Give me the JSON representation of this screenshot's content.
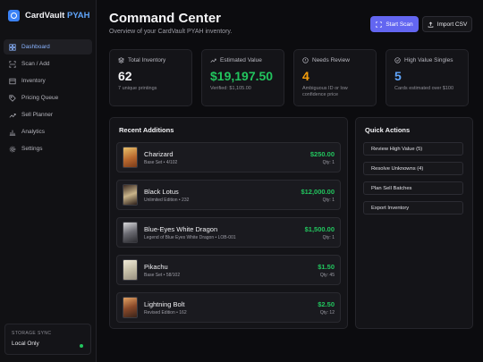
{
  "brand": {
    "name": "CardVault",
    "accent": "PYAH"
  },
  "nav": [
    {
      "label": "Dashboard",
      "icon": "dashboard-icon",
      "active": true
    },
    {
      "label": "Scan / Add",
      "icon": "scan-icon"
    },
    {
      "label": "Inventory",
      "icon": "inventory-icon"
    },
    {
      "label": "Pricing Queue",
      "icon": "pricing-icon"
    },
    {
      "label": "Sell Planner",
      "icon": "trend-icon"
    },
    {
      "label": "Analytics",
      "icon": "chart-icon"
    },
    {
      "label": "Settings",
      "icon": "gear-icon"
    }
  ],
  "sync": {
    "label": "STORAGE SYNC",
    "value": "Local Only",
    "status_color": "#22c55e"
  },
  "header": {
    "title": "Command Center",
    "subtitle": "Overview of your CardVault PYAH inventory.",
    "scan_label": "Start Scan",
    "import_label": "Import CSV"
  },
  "stats": [
    {
      "label": "Total Inventory",
      "value": "62",
      "note": "7 unique printings",
      "color": "#f5f5f7",
      "icon": "layers-icon"
    },
    {
      "label": "Estimated Value",
      "value": "$19,197.50",
      "note": "Verified: $1,105.00",
      "color": "#22c55e",
      "icon": "trend-icon"
    },
    {
      "label": "Needs Review",
      "value": "4",
      "note": "Ambiguous ID or low confidence price",
      "color": "#f59e0b",
      "icon": "alert-icon"
    },
    {
      "label": "High Value Singles",
      "value": "5",
      "note": "Cards estimated over $100",
      "color": "#60a5fa",
      "icon": "target-icon"
    }
  ],
  "recent": {
    "title": "Recent Additions",
    "items": [
      {
        "name": "Charizard",
        "set": "Base Set • 4/102",
        "price": "$250.00",
        "qty": "Qty: 1"
      },
      {
        "name": "Black Lotus",
        "set": "Unlimited Edition • 232",
        "price": "$12,000.00",
        "qty": "Qty: 1"
      },
      {
        "name": "Blue-Eyes White Dragon",
        "set": "Legend of Blue Eyes White Dragon • LOB-001",
        "price": "$1,500.00",
        "qty": "Qty: 1"
      },
      {
        "name": "Pikachu",
        "set": "Base Set • 58/102",
        "price": "$1.50",
        "qty": "Qty: 45"
      },
      {
        "name": "Lightning Bolt",
        "set": "Revised Edition • 162",
        "price": "$2.50",
        "qty": "Qty: 12"
      }
    ]
  },
  "quick": {
    "title": "Quick Actions",
    "actions": [
      "Review High Value (5)",
      "Resolve Unknowns (4)",
      "Plan Sell Batches",
      "Export Inventory"
    ]
  }
}
